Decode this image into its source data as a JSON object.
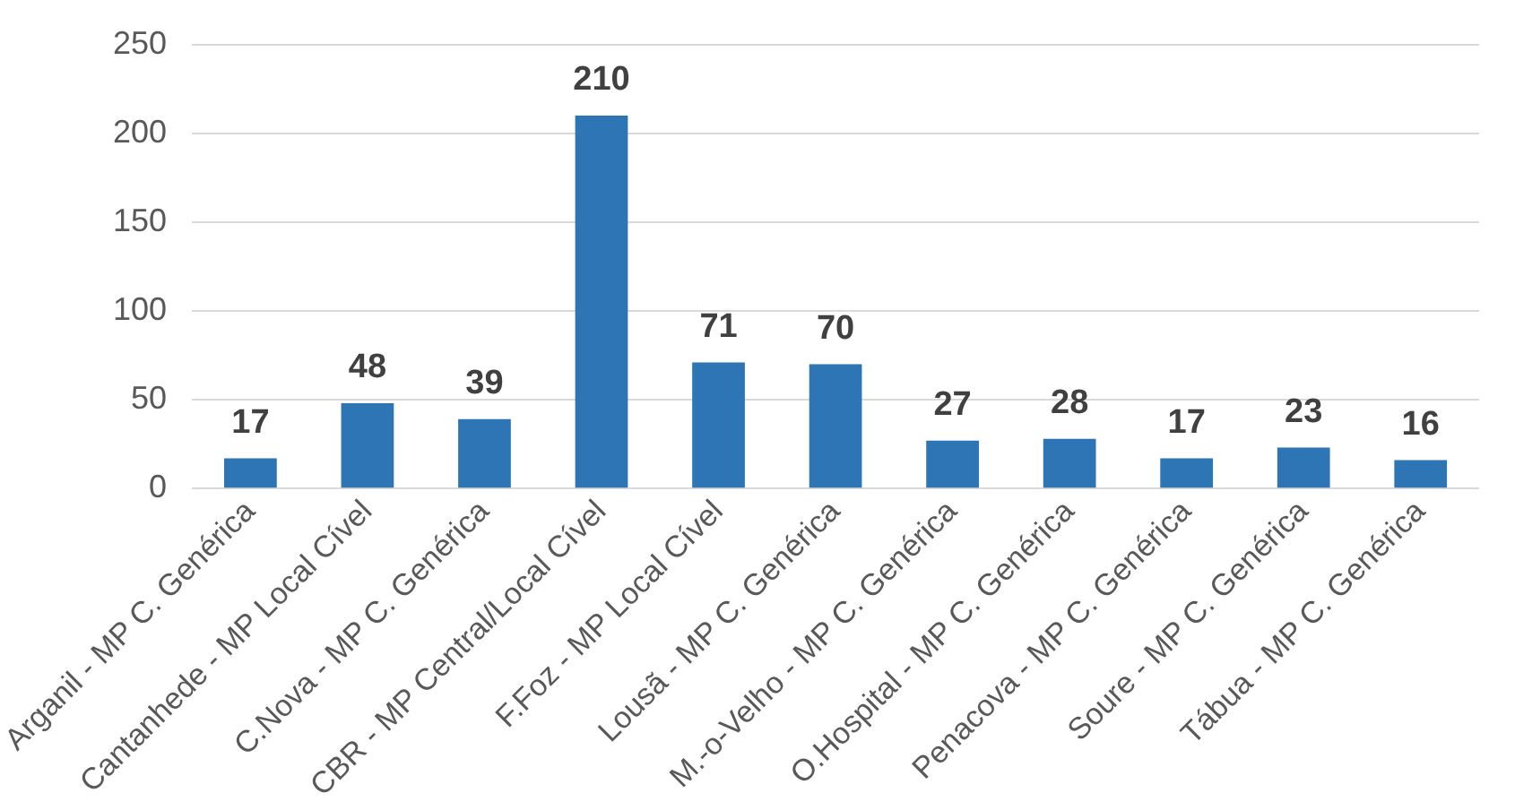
{
  "chart_data": {
    "type": "bar",
    "categories": [
      "Arganil - MP C. Genérica",
      "Cantanhede - MP Local Cível",
      "C.Nova - MP C. Genérica",
      "CBR - MP Central/Local Cível",
      "F.Foz - MP Local Cível",
      "Lousã - MP C. Genérica",
      "M.-o-Velho - MP C. Genérica",
      "O.Hospital - MP C. Genérica",
      "Penacova - MP C. Genérica",
      "Soure - MP C. Genérica",
      "Tábua - MP C. Genérica"
    ],
    "values": [
      17,
      48,
      39,
      210,
      71,
      70,
      27,
      28,
      17,
      23,
      16
    ],
    "color": "#2e75b6",
    "ylim": [
      0,
      250
    ],
    "yticks": [
      0,
      50,
      100,
      150,
      200,
      250
    ],
    "grid": "y",
    "data_labels": true
  }
}
